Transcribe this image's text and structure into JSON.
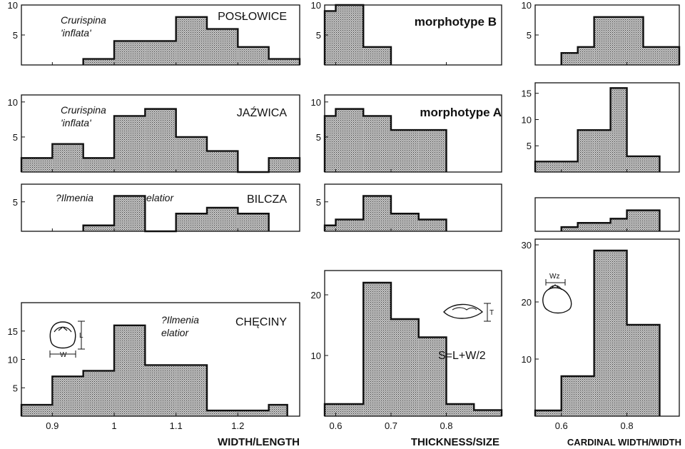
{
  "colors": {
    "bar_fill": "#a9a9a9",
    "ink": "#111111"
  },
  "x_axis_labels": {
    "width_length": "WIDTH/LENGTH",
    "thickness_size": "THICKNESS/SIZE",
    "cardinal": "CARDINAL WIDTH/WIDTH"
  },
  "x_ticks": {
    "width_length": [
      "0.9",
      "1",
      "1.1",
      "1.2"
    ],
    "thickness_size": [
      "0.6",
      "0.7",
      "0.8"
    ],
    "cardinal": [
      "0.6",
      "0.8"
    ]
  },
  "formula": "S=L+W/2",
  "symbols": {
    "L": "L",
    "W": "W",
    "T": "T",
    "Wz": "Wz"
  },
  "chart_data": [
    {
      "type": "bar",
      "id": "wl-poslowice",
      "location": "POSŁOWICE",
      "taxon": [
        "Crurispina",
        "'inflata'"
      ],
      "xlabel": "WIDTH/LENGTH",
      "xlim": [
        0.85,
        1.3
      ],
      "ylim": [
        0,
        10
      ],
      "yticks": [
        5,
        10
      ],
      "bin_edges": [
        0.95,
        1.0,
        1.05,
        1.1,
        1.15,
        1.2,
        1.25,
        1.3
      ],
      "values": [
        1,
        4,
        4,
        8,
        6,
        3,
        1
      ]
    },
    {
      "type": "bar",
      "id": "wl-jazwica",
      "location": "JAŹWICA",
      "taxon": [
        "Crurispina",
        "'inflata'"
      ],
      "xlabel": "WIDTH/LENGTH",
      "xlim": [
        0.85,
        1.3
      ],
      "ylim": [
        0,
        11
      ],
      "yticks": [
        5,
        10
      ],
      "bin_edges": [
        0.85,
        0.9,
        0.95,
        1.0,
        1.05,
        1.1,
        1.15,
        1.2,
        1.25,
        1.3
      ],
      "values": [
        2,
        4,
        2,
        8,
        9,
        5,
        3,
        0,
        2
      ]
    },
    {
      "type": "bar",
      "id": "wl-bilcza",
      "location": "BILCZA",
      "taxon": [
        "?Ilmenia",
        "elatior"
      ],
      "xlabel": "WIDTH/LENGTH",
      "xlim": [
        0.85,
        1.3
      ],
      "ylim": [
        0,
        8
      ],
      "yticks": [
        5
      ],
      "bin_edges": [
        0.95,
        1.0,
        1.05,
        1.1,
        1.15,
        1.2,
        1.25
      ],
      "values": [
        1,
        6,
        0,
        3,
        4,
        3
      ]
    },
    {
      "type": "bar",
      "id": "wl-checiny",
      "location": "CHĘCINY",
      "taxon": [
        "?Ilmenia",
        "elatior"
      ],
      "xlabel": "WIDTH/LENGTH",
      "xlim": [
        0.85,
        1.3
      ],
      "ylim": [
        0,
        20
      ],
      "yticks": [
        5,
        10,
        15
      ],
      "bin_edges": [
        0.85,
        0.9,
        0.95,
        1.0,
        1.05,
        1.1,
        1.15,
        1.2,
        1.25,
        1.28
      ],
      "values": [
        2,
        7,
        8,
        16,
        9,
        9,
        1,
        1,
        2
      ]
    },
    {
      "type": "bar",
      "id": "ts-morph-b",
      "label": "morphotype  B",
      "xlabel": "THICKNESS/SIZE",
      "xlim": [
        0.58,
        0.9
      ],
      "ylim": [
        0,
        10
      ],
      "yticks": [
        5,
        10
      ],
      "bin_edges": [
        0.58,
        0.6,
        0.65,
        0.7
      ],
      "values": [
        9,
        10,
        3
      ]
    },
    {
      "type": "bar",
      "id": "ts-morph-a",
      "label": "morphotype  A",
      "xlabel": "THICKNESS/SIZE",
      "xlim": [
        0.58,
        0.9
      ],
      "ylim": [
        0,
        11
      ],
      "yticks": [
        5,
        10
      ],
      "bin_edges": [
        0.58,
        0.6,
        0.65,
        0.7,
        0.75,
        0.8
      ],
      "values": [
        8,
        9,
        8,
        6,
        6
      ]
    },
    {
      "type": "bar",
      "id": "ts-bilcza",
      "xlabel": "THICKNESS/SIZE",
      "xlim": [
        0.58,
        0.9
      ],
      "ylim": [
        0,
        8
      ],
      "yticks": [
        5
      ],
      "bin_edges": [
        0.58,
        0.6,
        0.65,
        0.7,
        0.75,
        0.8
      ],
      "values": [
        1,
        2,
        6,
        3,
        2
      ]
    },
    {
      "type": "bar",
      "id": "ts-checiny",
      "xlabel": "THICKNESS/SIZE",
      "xlim": [
        0.58,
        0.9
      ],
      "ylim": [
        0,
        24
      ],
      "yticks": [
        10,
        20
      ],
      "bin_edges": [
        0.58,
        0.6,
        0.65,
        0.7,
        0.75,
        0.8,
        0.85,
        0.9
      ],
      "values": [
        2,
        2,
        22,
        16,
        13,
        2,
        1
      ]
    },
    {
      "type": "bar",
      "id": "cw-poslowice",
      "xlabel": "CARDINAL WIDTH/WIDTH",
      "xlim": [
        0.52,
        0.96
      ],
      "ylim": [
        0,
        10
      ],
      "yticks": [
        5,
        10
      ],
      "bin_edges": [
        0.6,
        0.65,
        0.7,
        0.8,
        0.85,
        0.9,
        0.96
      ],
      "values": [
        2,
        3,
        8,
        8,
        3,
        3
      ]
    },
    {
      "type": "bar",
      "id": "cw-jazwica",
      "xlabel": "CARDINAL WIDTH/WIDTH",
      "xlim": [
        0.52,
        0.96
      ],
      "ylim": [
        0,
        17
      ],
      "yticks": [
        5,
        10,
        15
      ],
      "bin_edges": [
        0.52,
        0.6,
        0.65,
        0.7,
        0.75,
        0.8,
        0.85,
        0.9
      ],
      "values": [
        2,
        2,
        8,
        8,
        16,
        3,
        3
      ]
    },
    {
      "type": "bar",
      "id": "cw-bilcza",
      "xlabel": "CARDINAL WIDTH/WIDTH",
      "xlim": [
        0.52,
        0.96
      ],
      "ylim": [
        0,
        8
      ],
      "yticks": [],
      "bin_edges": [
        0.6,
        0.65,
        0.7,
        0.75,
        0.8,
        0.85,
        0.9
      ],
      "values": [
        1,
        2,
        2,
        3,
        5,
        5
      ]
    },
    {
      "type": "bar",
      "id": "cw-checiny",
      "xlabel": "CARDINAL WIDTH/WIDTH",
      "xlim": [
        0.52,
        0.96
      ],
      "ylim": [
        0,
        31
      ],
      "yticks": [
        10,
        20,
        30
      ],
      "bin_edges": [
        0.52,
        0.55,
        0.6,
        0.65,
        0.7,
        0.75,
        0.8,
        0.85,
        0.9
      ],
      "values": [
        1,
        1,
        7,
        7,
        29,
        29,
        16,
        16
      ]
    }
  ]
}
